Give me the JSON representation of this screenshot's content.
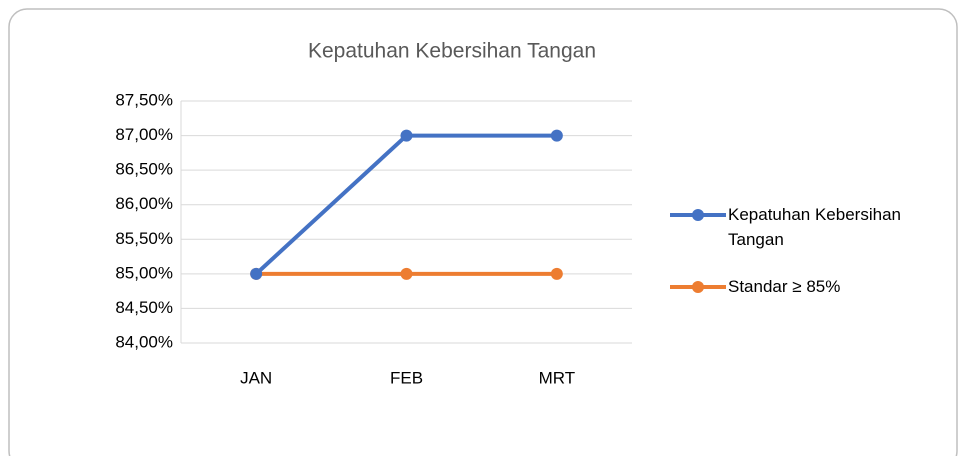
{
  "chart_data": {
    "type": "line",
    "title": "Kepatuhan Kebersihan Tangan",
    "categories": [
      "JAN",
      "FEB",
      "MRT"
    ],
    "series": [
      {
        "name": "Kepatuhan Kebersihan Tangan",
        "color": "#4472c4",
        "values": [
          85,
          87,
          87
        ]
      },
      {
        "name": "Standar ≥ 85%",
        "color": "#ed7d31",
        "values": [
          85,
          85,
          85
        ]
      }
    ],
    "ylim": [
      84,
      87.5
    ],
    "yticks": [
      {
        "value": 84,
        "label": "84,00%"
      },
      {
        "value": 84.5,
        "label": "84,50%"
      },
      {
        "value": 85,
        "label": "85,00%"
      },
      {
        "value": 85.5,
        "label": "85,50%"
      },
      {
        "value": 86,
        "label": "86,00%"
      },
      {
        "value": 86.5,
        "label": "86,50%"
      },
      {
        "value": 87,
        "label": "87,00%"
      },
      {
        "value": 87.5,
        "label": "87,50%"
      }
    ],
    "grid": true,
    "legend": "right"
  }
}
